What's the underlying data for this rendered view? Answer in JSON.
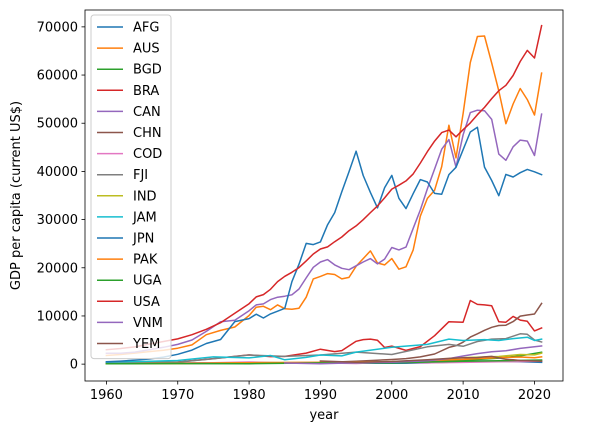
{
  "chart_data": {
    "type": "line",
    "xlabel": "year",
    "ylabel": "GDP per capita (current US$)",
    "xlim": [
      1957,
      2024
    ],
    "ylim": [
      -3500,
      73500
    ],
    "xticks": [
      1960,
      1970,
      1980,
      1990,
      2000,
      2010,
      2020
    ],
    "yticks": [
      0,
      10000,
      20000,
      30000,
      40000,
      50000,
      60000,
      70000
    ],
    "legend_position": "upper-left",
    "grid": false,
    "series": [
      {
        "name": "AFG",
        "color": "#1f77b4",
        "x": [
          1960,
          1970,
          1980,
          1990,
          2000,
          2002,
          2005,
          2008,
          2010,
          2012,
          2015,
          2018,
          2021
        ],
        "y": [
          60,
          160,
          280,
          180,
          180,
          190,
          260,
          380,
          560,
          650,
          590,
          490,
          370
        ]
      },
      {
        "name": "AUS",
        "color": "#ff7f0e",
        "x": [
          1960,
          1962,
          1964,
          1966,
          1968,
          1970,
          1972,
          1974,
          1976,
          1978,
          1980,
          1981,
          1982,
          1983,
          1984,
          1985,
          1986,
          1987,
          1988,
          1989,
          1990,
          1991,
          1992,
          1993,
          1994,
          1995,
          1996,
          1997,
          1998,
          1999,
          2000,
          2001,
          2002,
          2003,
          2004,
          2005,
          2006,
          2007,
          2008,
          2009,
          2010,
          2011,
          2012,
          2013,
          2014,
          2015,
          2016,
          2017,
          2018,
          2019,
          2020,
          2021
        ],
        "y": [
          1800,
          2000,
          2300,
          2600,
          2900,
          3300,
          4000,
          6100,
          7000,
          7700,
          10100,
          11800,
          12000,
          11300,
          12300,
          11500,
          11400,
          11600,
          13900,
          17700,
          18200,
          18800,
          18600,
          17700,
          18000,
          20300,
          21900,
          23500,
          21000,
          20600,
          21900,
          19700,
          20200,
          23700,
          30700,
          34400,
          36100,
          41000,
          49600,
          42800,
          52000,
          62600,
          68000,
          68100,
          62500,
          56700,
          49900,
          54000,
          57200,
          54900,
          51700,
          60400
        ]
      },
      {
        "name": "BGD",
        "color": "#2ca02c",
        "x": [
          1960,
          1970,
          1975,
          1980,
          1990,
          2000,
          2005,
          2010,
          2015,
          2018,
          2021
        ],
        "y": [
          90,
          140,
          280,
          230,
          300,
          410,
          490,
          780,
          1250,
          1700,
          2450
        ]
      },
      {
        "name": "BRA",
        "color": "#d62728",
        "x": [
          1960,
          1965,
          1970,
          1975,
          1980,
          1983,
          1985,
          1988,
          1990,
          1992,
          1993,
          1995,
          1996,
          1997,
          1998,
          1999,
          2000,
          2002,
          2004,
          2006,
          2008,
          2010,
          2011,
          2012,
          2013,
          2014,
          2015,
          2016,
          2017,
          2018,
          2019,
          2020,
          2021
        ],
        "y": [
          210,
          260,
          440,
          1150,
          1920,
          1560,
          1600,
          2300,
          3100,
          2600,
          2800,
          4750,
          5100,
          5200,
          4950,
          3450,
          3750,
          2850,
          3650,
          5900,
          8800,
          8700,
          13200,
          12400,
          12300,
          12100,
          8800,
          8700,
          9900,
          9150,
          8900,
          6900,
          7500
        ]
      },
      {
        "name": "CAN",
        "color": "#9467bd",
        "x": [
          1960,
          1962,
          1964,
          1966,
          1968,
          1970,
          1972,
          1974,
          1976,
          1978,
          1980,
          1981,
          1982,
          1983,
          1984,
          1985,
          1986,
          1987,
          1988,
          1989,
          1990,
          1991,
          1992,
          1993,
          1994,
          1995,
          1996,
          1997,
          1998,
          1999,
          2000,
          2001,
          2002,
          2003,
          2004,
          2005,
          2006,
          2007,
          2008,
          2009,
          2010,
          2011,
          2012,
          2013,
          2014,
          2015,
          2016,
          2017,
          2018,
          2019,
          2020,
          2021
        ],
        "y": [
          2260,
          2270,
          2500,
          3000,
          3500,
          4100,
          5000,
          6800,
          8800,
          9100,
          11100,
          12300,
          12500,
          13400,
          13900,
          14100,
          14400,
          15600,
          17900,
          20100,
          21200,
          21700,
          20600,
          19900,
          19600,
          20400,
          21200,
          21900,
          20800,
          21800,
          24200,
          23700,
          24300,
          28200,
          32000,
          36400,
          40500,
          44600,
          46600,
          40900,
          47600,
          52200,
          52700,
          52600,
          50800,
          43600,
          42300,
          45100,
          46500,
          46300,
          43300,
          51900
        ]
      },
      {
        "name": "CHN",
        "color": "#8c564b",
        "x": [
          1960,
          1970,
          1980,
          1985,
          1990,
          1995,
          2000,
          2002,
          2004,
          2006,
          2008,
          2009,
          2010,
          2011,
          2012,
          2013,
          2014,
          2015,
          2016,
          2017,
          2018,
          2019,
          2020,
          2021
        ],
        "y": [
          90,
          110,
          200,
          300,
          320,
          610,
          960,
          1150,
          1510,
          2100,
          3470,
          3830,
          4550,
          5610,
          6300,
          7020,
          7640,
          8020,
          8090,
          8820,
          9980,
          10200,
          10400,
          12600
        ]
      },
      {
        "name": "COD",
        "color": "#e377c2",
        "x": [
          1960,
          1970,
          1975,
          1980,
          1985,
          1990,
          1995,
          2000,
          2005,
          2010,
          2015,
          2021
        ],
        "y": [
          220,
          250,
          300,
          450,
          260,
          250,
          140,
          400,
          250,
          370,
          490,
          580
        ]
      },
      {
        "name": "FJI",
        "color": "#7f7f7f",
        "x": [
          1960,
          1965,
          1970,
          1975,
          1980,
          1985,
          1990,
          1995,
          2000,
          2005,
          2008,
          2010,
          2012,
          2014,
          2016,
          2018,
          2019,
          2020,
          2021
        ],
        "y": [
          290,
          330,
          430,
          1100,
          1900,
          1600,
          1900,
          2500,
          2000,
          3600,
          4100,
          3700,
          4700,
          5200,
          5300,
          6300,
          6200,
          5000,
          4600
        ]
      },
      {
        "name": "IND",
        "color": "#bcbd22",
        "x": [
          1960,
          1970,
          1980,
          1990,
          2000,
          2005,
          2010,
          2015,
          2018,
          2020,
          2021
        ],
        "y": [
          80,
          110,
          270,
          370,
          440,
          710,
          1350,
          1590,
          2000,
          1910,
          2260
        ]
      },
      {
        "name": "JAM",
        "color": "#17becf",
        "x": [
          1960,
          1965,
          1970,
          1975,
          1980,
          1983,
          1985,
          1988,
          1990,
          1993,
          1995,
          2000,
          2005,
          2008,
          2010,
          2013,
          2015,
          2017,
          2019,
          2020,
          2021
        ],
        "y": [
          430,
          550,
          750,
          1500,
          1300,
          1800,
          900,
          1400,
          1900,
          1700,
          2500,
          3500,
          4100,
          5200,
          4900,
          5100,
          4900,
          5300,
          5600,
          4900,
          5200
        ]
      },
      {
        "name": "JPN",
        "color": "#1f77b4",
        "x": [
          1960,
          1962,
          1964,
          1966,
          1968,
          1970,
          1972,
          1974,
          1976,
          1978,
          1980,
          1981,
          1982,
          1983,
          1984,
          1985,
          1986,
          1987,
          1988,
          1989,
          1990,
          1991,
          1992,
          1993,
          1994,
          1995,
          1996,
          1997,
          1998,
          1999,
          2000,
          2001,
          2002,
          2003,
          2004,
          2005,
          2006,
          2007,
          2008,
          2009,
          2010,
          2011,
          2012,
          2013,
          2014,
          2015,
          2016,
          2017,
          2018,
          2019,
          2020,
          2021
        ],
        "y": [
          480,
          620,
          840,
          1060,
          1450,
          2040,
          2920,
          4280,
          5110,
          8820,
          9460,
          10360,
          9580,
          10420,
          10980,
          11590,
          17110,
          20750,
          25050,
          24810,
          25360,
          28930,
          31460,
          35760,
          39930,
          44200,
          39150,
          35640,
          32420,
          36610,
          39170,
          34410,
          32290,
          35390,
          38300,
          37810,
          35430,
          35280,
          39340,
          40860,
          44510,
          48170,
          49150,
          40900,
          38110,
          34960,
          39380,
          38830,
          39730,
          40420,
          39920,
          39310
        ]
      },
      {
        "name": "PAK",
        "color": "#ff7f0e",
        "x": [
          1960,
          1970,
          1980,
          1990,
          2000,
          2005,
          2010,
          2015,
          2018,
          2020,
          2021
        ],
        "y": [
          80,
          170,
          300,
          370,
          530,
          730,
          990,
          1360,
          1480,
          1320,
          1500
        ]
      },
      {
        "name": "UGA",
        "color": "#2ca02c",
        "x": [
          1960,
          1970,
          1980,
          1990,
          2000,
          2010,
          2015,
          2021
        ],
        "y": [
          70,
          130,
          100,
          250,
          260,
          590,
          700,
          860
        ]
      },
      {
        "name": "USA",
        "color": "#d62728",
        "x": [
          1960,
          1962,
          1964,
          1966,
          1968,
          1970,
          1972,
          1974,
          1976,
          1978,
          1980,
          1981,
          1982,
          1983,
          1984,
          1985,
          1986,
          1987,
          1988,
          1989,
          1990,
          1991,
          1992,
          1993,
          1994,
          1995,
          1996,
          1997,
          1998,
          1999,
          2000,
          2001,
          2002,
          2003,
          2004,
          2005,
          2006,
          2007,
          2008,
          2009,
          2010,
          2011,
          2012,
          2013,
          2014,
          2015,
          2016,
          2017,
          2018,
          2019,
          2020,
          2021
        ],
        "y": [
          3000,
          3240,
          3570,
          4150,
          4700,
          5230,
          6100,
          7230,
          8590,
          10560,
          12550,
          13950,
          14430,
          15540,
          17120,
          18240,
          19070,
          20040,
          21420,
          22860,
          23890,
          24340,
          25420,
          26390,
          27690,
          28690,
          29970,
          31460,
          32850,
          34510,
          36330,
          37130,
          38020,
          39490,
          41720,
          44120,
          46300,
          48050,
          48570,
          47190,
          48650,
          50070,
          51780,
          53290,
          55120,
          56760,
          57870,
          59910,
          62820,
          65120,
          63530,
          70250
        ]
      },
      {
        "name": "VNM",
        "color": "#9467bd",
        "x": [
          1985,
          1990,
          1995,
          2000,
          2005,
          2008,
          2010,
          2012,
          2014,
          2016,
          2018,
          2020,
          2021
        ],
        "y": [
          230,
          95,
          290,
          390,
          690,
          1150,
          1680,
          2190,
          2560,
          2760,
          3270,
          3590,
          3760
        ]
      },
      {
        "name": "YEM",
        "color": "#8c564b",
        "x": [
          1990,
          1995,
          2000,
          2005,
          2008,
          2010,
          2012,
          2013,
          2014,
          2015,
          2016,
          2017,
          2018,
          2019,
          2020,
          2021
        ],
        "y": [
          650,
          400,
          550,
          900,
          1200,
          1330,
          1350,
          1500,
          1600,
          1300,
          1000,
          900,
          750,
          700,
          650,
          600
        ]
      }
    ]
  }
}
